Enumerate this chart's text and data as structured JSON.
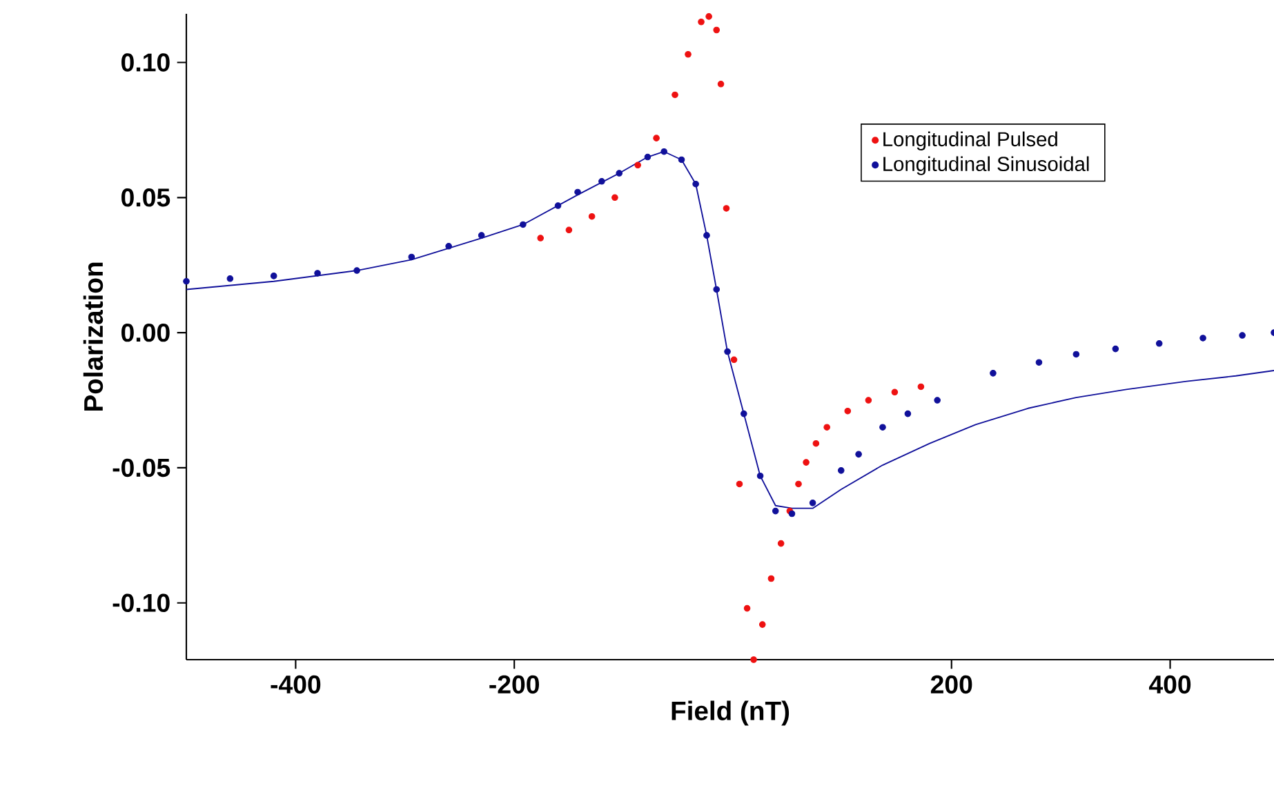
{
  "chart_data": {
    "type": "scatter",
    "xlabel": "Field (nT)",
    "ylabel": "Polarization",
    "xlim": [
      -500,
      495
    ],
    "ylim": [
      -0.121,
      0.118
    ],
    "xticks": [
      -400,
      -200,
      200,
      400
    ],
    "yticks": [
      {
        "value": 0.1,
        "label": "0.10"
      },
      {
        "value": 0.05,
        "label": "0.05"
      },
      {
        "value": 0,
        "label": "0.00"
      },
      {
        "value": -0.05,
        "label": "-0.05"
      },
      {
        "value": -0.1,
        "label": "-0.10"
      }
    ],
    "legend": "top right",
    "grid": false,
    "series": [
      {
        "name": "Longitudinal Pulsed",
        "marker": "circle",
        "color": "#ee1111",
        "x": [
          -176,
          -150,
          -129,
          -108,
          -87,
          -70,
          -53,
          -41,
          -29,
          -22,
          -15,
          -11,
          -6,
          1,
          6,
          13,
          19,
          27,
          35,
          44,
          52,
          60,
          67,
          76,
          86,
          105,
          124,
          148,
          172
        ],
        "values": [
          0.035,
          0.038,
          0.043,
          0.05,
          0.062,
          0.072,
          0.088,
          0.103,
          0.115,
          0.117,
          0.112,
          0.092,
          0.046,
          -0.01,
          -0.056,
          -0.102,
          -0.121,
          -0.108,
          -0.091,
          -0.078,
          -0.066,
          -0.056,
          -0.048,
          -0.041,
          -0.035,
          -0.029,
          -0.025,
          -0.022,
          -0.02
        ]
      },
      {
        "name": "Longitudinal Sinusoidal",
        "marker": "circle",
        "color": "#10109a",
        "x": [
          -500,
          -460,
          -420,
          -380,
          -344,
          -294,
          -260,
          -230,
          -192,
          -160,
          -142,
          -120,
          -104,
          -78,
          -63,
          -47,
          -34,
          -24,
          -15,
          -5,
          10,
          25,
          39,
          54,
          73,
          99,
          115,
          137,
          160,
          187,
          238,
          280,
          314,
          350,
          390,
          430,
          466,
          495
        ],
        "values": [
          0.019,
          0.02,
          0.021,
          0.022,
          0.023,
          0.028,
          0.032,
          0.036,
          0.04,
          0.047,
          0.052,
          0.056,
          0.059,
          0.065,
          0.067,
          0.064,
          0.055,
          0.036,
          0.016,
          -0.007,
          -0.03,
          -0.053,
          -0.066,
          -0.067,
          -0.063,
          -0.051,
          -0.045,
          -0.035,
          -0.03,
          -0.025,
          -0.015,
          -0.011,
          -0.008,
          -0.006,
          -0.004,
          -0.002,
          -0.001,
          0.0
        ]
      },
      {
        "type": "line",
        "marker": "none",
        "color": "#10109a",
        "x": [
          -500,
          -420,
          -344,
          -294,
          -230,
          -192,
          -142,
          -104,
          -78,
          -63,
          -47,
          -34,
          -24,
          -15,
          -5,
          10,
          25,
          39,
          54,
          73,
          99,
          137,
          180,
          222,
          270,
          314,
          360,
          415,
          460,
          495
        ],
        "values": [
          0.016,
          0.019,
          0.023,
          0.027,
          0.035,
          0.04,
          0.051,
          0.059,
          0.065,
          0.067,
          0.064,
          0.055,
          0.036,
          0.016,
          -0.007,
          -0.03,
          -0.053,
          -0.064,
          -0.065,
          -0.065,
          -0.058,
          -0.049,
          -0.041,
          -0.034,
          -0.028,
          -0.024,
          -0.021,
          -0.018,
          -0.016,
          -0.014
        ]
      }
    ]
  }
}
